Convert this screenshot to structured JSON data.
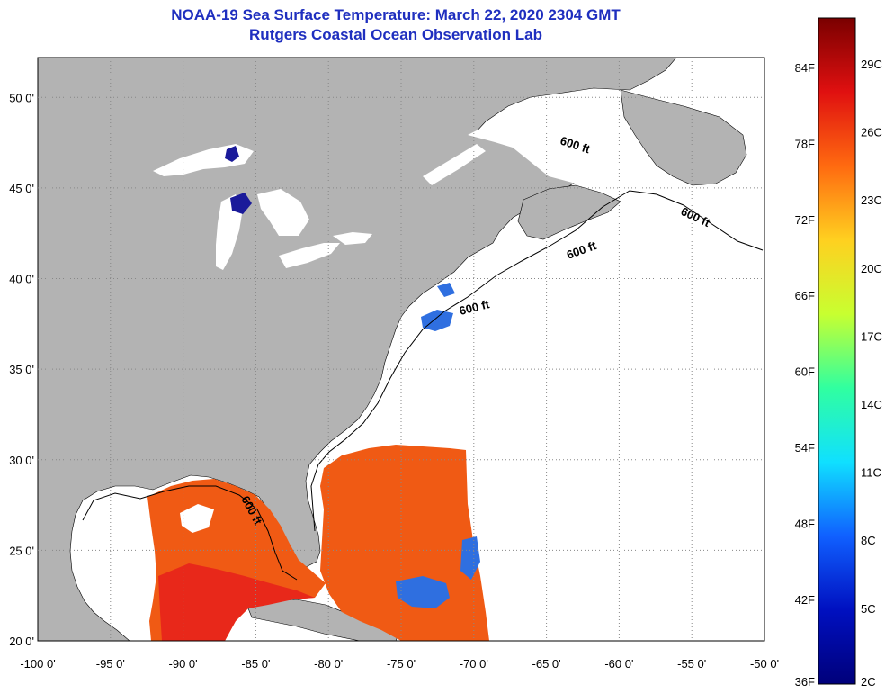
{
  "header": {
    "title_line1": "NOAA-19 Sea Surface Temperature:  March 22, 2020 2304 GMT",
    "title_line2": "Rutgers Coastal Ocean Observation Lab"
  },
  "map": {
    "lat_labels": [
      {
        "lat": 50,
        "label": "50 0'"
      },
      {
        "lat": 45,
        "label": "45 0'"
      },
      {
        "lat": 40,
        "label": "40 0'"
      },
      {
        "lat": 35,
        "label": "35 0'"
      },
      {
        "lat": 30,
        "label": "30 0'"
      },
      {
        "lat": 25,
        "label": "25 0'"
      },
      {
        "lat": 20,
        "label": "20 0'"
      }
    ],
    "lon_labels": [
      {
        "lon": -100,
        "label": "-100 0'"
      },
      {
        "lon": -95,
        "label": "-95 0'"
      },
      {
        "lon": -90,
        "label": "-90 0'"
      },
      {
        "lon": -85,
        "label": "-85 0'"
      },
      {
        "lon": -80,
        "label": "-80 0'"
      },
      {
        "lon": -75,
        "label": "-75 0'"
      },
      {
        "lon": -70,
        "label": "-70 0'"
      },
      {
        "lon": -65,
        "label": "-65 0'"
      },
      {
        "lon": -60,
        "label": "-60 0'"
      },
      {
        "lon": -55,
        "label": "-55 0'"
      },
      {
        "lon": -50,
        "label": "-50 0'"
      }
    ],
    "isobath_label": "600 ft",
    "colors": {
      "land": "#b3b3b3",
      "ocean": "#ffffff",
      "warm_water": "#f05a14",
      "hot_water": "#e8281a",
      "cool_water": "#2f6fe0",
      "lake_ice": "#1a1a9a",
      "grid": "#888888"
    }
  },
  "colorbar": {
    "fahrenheit_labels": [
      "84F",
      "78F",
      "72F",
      "66F",
      "60F",
      "54F",
      "48F",
      "42F",
      "36F"
    ],
    "celsius_labels": [
      "29C",
      "26C",
      "23C",
      "20C",
      "17C",
      "14C",
      "11C",
      "8C",
      "5C",
      "2C"
    ],
    "gradient_top_to_bottom": [
      "#7a0000",
      "#e01010",
      "#ff6a10",
      "#ffd020",
      "#c8ff30",
      "#30ffa0",
      "#10e0ff",
      "#1060ff",
      "#0010c0",
      "#00007a"
    ]
  }
}
